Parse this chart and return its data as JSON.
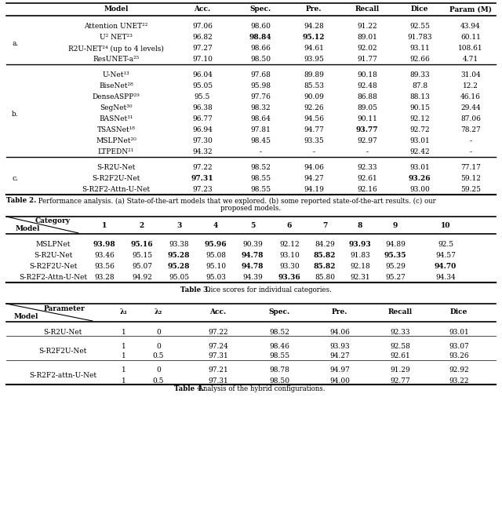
{
  "table2": {
    "headers": [
      "Model",
      "Acc.",
      "Spec.",
      "Pre.",
      "Recall",
      "Dice",
      "Param (M)"
    ],
    "sections": {
      "a": [
        [
          "Attention UNET²²",
          "97.06",
          "98.60",
          "94.28",
          "91.22",
          "92.55",
          "43.94"
        ],
        [
          "U² NET²³",
          "96.82",
          "98.84",
          "95.12",
          "89.01",
          "91.783",
          "60.11"
        ],
        [
          "R2U-NET²⁴ (up to 4 levels)",
          "97.27",
          "98.66",
          "94.61",
          "92.02",
          "93.11",
          "108.61"
        ],
        [
          "ResUNET-a²⁵",
          "97.10",
          "98.50",
          "93.95",
          "91.77",
          "92.66",
          "4.71"
        ]
      ],
      "b": [
        [
          "U-Net¹³",
          "96.04",
          "97.68",
          "89.89",
          "90.18",
          "89.33",
          "31.04"
        ],
        [
          "BiseNet²⁸",
          "95.05",
          "95.98",
          "85.53",
          "92.48",
          "87.8",
          "12.2"
        ],
        [
          "DenseASPP²⁹",
          "95.5",
          "97.76",
          "90.09",
          "86.88",
          "88.13",
          "46.16"
        ],
        [
          "SegNet³⁰",
          "96.38",
          "98.32",
          "92.26",
          "89.05",
          "90.15",
          "29.44"
        ],
        [
          "BASNet³¹",
          "96.77",
          "98.64",
          "94.56",
          "90.11",
          "92.12",
          "87.06"
        ],
        [
          "TSASNet¹⁸",
          "96.94",
          "97.81",
          "94.77",
          "93.77",
          "92.72",
          "78.27"
        ],
        [
          "MSLPNet²⁰",
          "97.30",
          "98.45",
          "93.35",
          "92.97",
          "93.01",
          "-"
        ],
        [
          "LTPEDN²¹",
          "94.32",
          "-",
          "-",
          "-",
          "92.42",
          "-"
        ]
      ],
      "c": [
        [
          "S-R2U-Net",
          "97.22",
          "98.52",
          "94.06",
          "92.33",
          "93.01",
          "77.17"
        ],
        [
          "S-R2F2U-Net",
          "97.31",
          "98.55",
          "94.27",
          "92.61",
          "93.26",
          "59.12"
        ],
        [
          "S-R2F2-Attn-U-Net",
          "97.23",
          "98.55",
          "94.19",
          "92.16",
          "93.00",
          "59.25"
        ]
      ]
    },
    "caption_bold": "Table 2.",
    "caption_rest": " Performance analysis. (a) State-of-the-art models that we explored. (b) some reported state-of-the-art results. (c) our",
    "caption_line2": "proposed models."
  },
  "table3": {
    "rows": [
      [
        "MSLPNet",
        "93.98",
        "95.16",
        "93.38",
        "95.96",
        "90.39",
        "92.12",
        "84.29",
        "93.93",
        "94.89",
        "92.5"
      ],
      [
        "S-R2U-Net",
        "93.46",
        "95.15",
        "95.28",
        "95.08",
        "94.78",
        "93.10",
        "85.82",
        "91.83",
        "95.35",
        "94.57"
      ],
      [
        "S-R2F2U-Net",
        "93.56",
        "95.07",
        "95.28",
        "95.10",
        "94.78",
        "93.30",
        "85.82",
        "92.18",
        "95.29",
        "94.70"
      ],
      [
        "S-R2F2-Attn-U-Net",
        "93.28",
        "94.92",
        "95.05",
        "95.03",
        "94.39",
        "93.36",
        "85.80",
        "92.31",
        "95.27",
        "94.34"
      ]
    ],
    "caption_bold": "Table 3.",
    "caption_rest": " Dice scores for individual categories."
  },
  "table4": {
    "rows": [
      [
        "S-R2U-Net",
        "1",
        "0",
        "97.22",
        "98.52",
        "94.06",
        "92.33",
        "93.01"
      ],
      [
        "S-R2F2U-Net",
        "1",
        "0",
        "97.24",
        "98.46",
        "93.93",
        "92.58",
        "93.07"
      ],
      [
        "S-R2F2U-Net",
        "1",
        "0.5",
        "97.31",
        "98.55",
        "94.27",
        "92.61",
        "93.26"
      ],
      [
        "S-R2F2-attn-U-Net",
        "1",
        "0",
        "97.21",
        "98.78",
        "94.97",
        "91.29",
        "92.92"
      ],
      [
        "S-R2F2-attn-U-Net",
        "1",
        "0.5",
        "97.31",
        "98.50",
        "94.00",
        "92.77",
        "93.22"
      ]
    ],
    "caption_bold": "Table 4.",
    "caption_rest": " Analysis of the hybrid configurations."
  }
}
